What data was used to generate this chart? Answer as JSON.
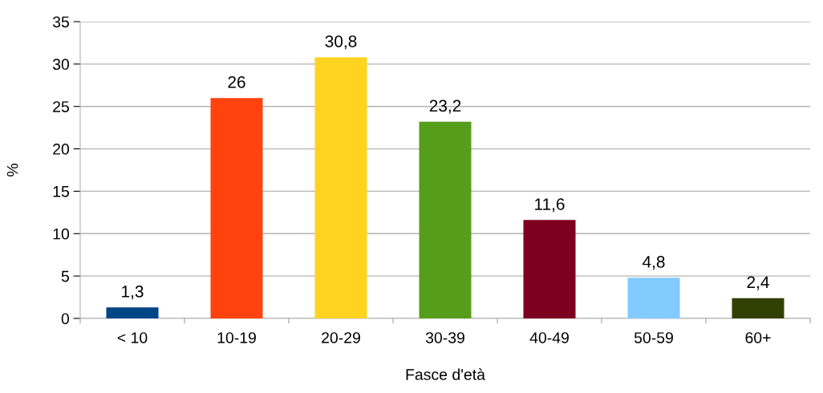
{
  "chart_data": {
    "type": "bar",
    "xlabel": "Fasce d'età",
    "ylabel": "%",
    "categories": [
      "< 10",
      "10-19",
      "20-29",
      "30-39",
      "40-49",
      "50-59",
      "60+"
    ],
    "values": [
      1.3,
      26,
      30.8,
      23.2,
      11.6,
      4.8,
      2.4
    ],
    "colors": [
      "#004586",
      "#ff420e",
      "#ffd320",
      "#579d1c",
      "#7e0021",
      "#83caff",
      "#314004"
    ],
    "value_labels": [
      "1,3",
      "26",
      "30,8",
      "23,2",
      "11,6",
      "4,8",
      "2,4"
    ],
    "ylim": [
      0,
      35
    ],
    "yticks": [
      0,
      5,
      10,
      15,
      20,
      25,
      30,
      35
    ],
    "grid": "y"
  }
}
